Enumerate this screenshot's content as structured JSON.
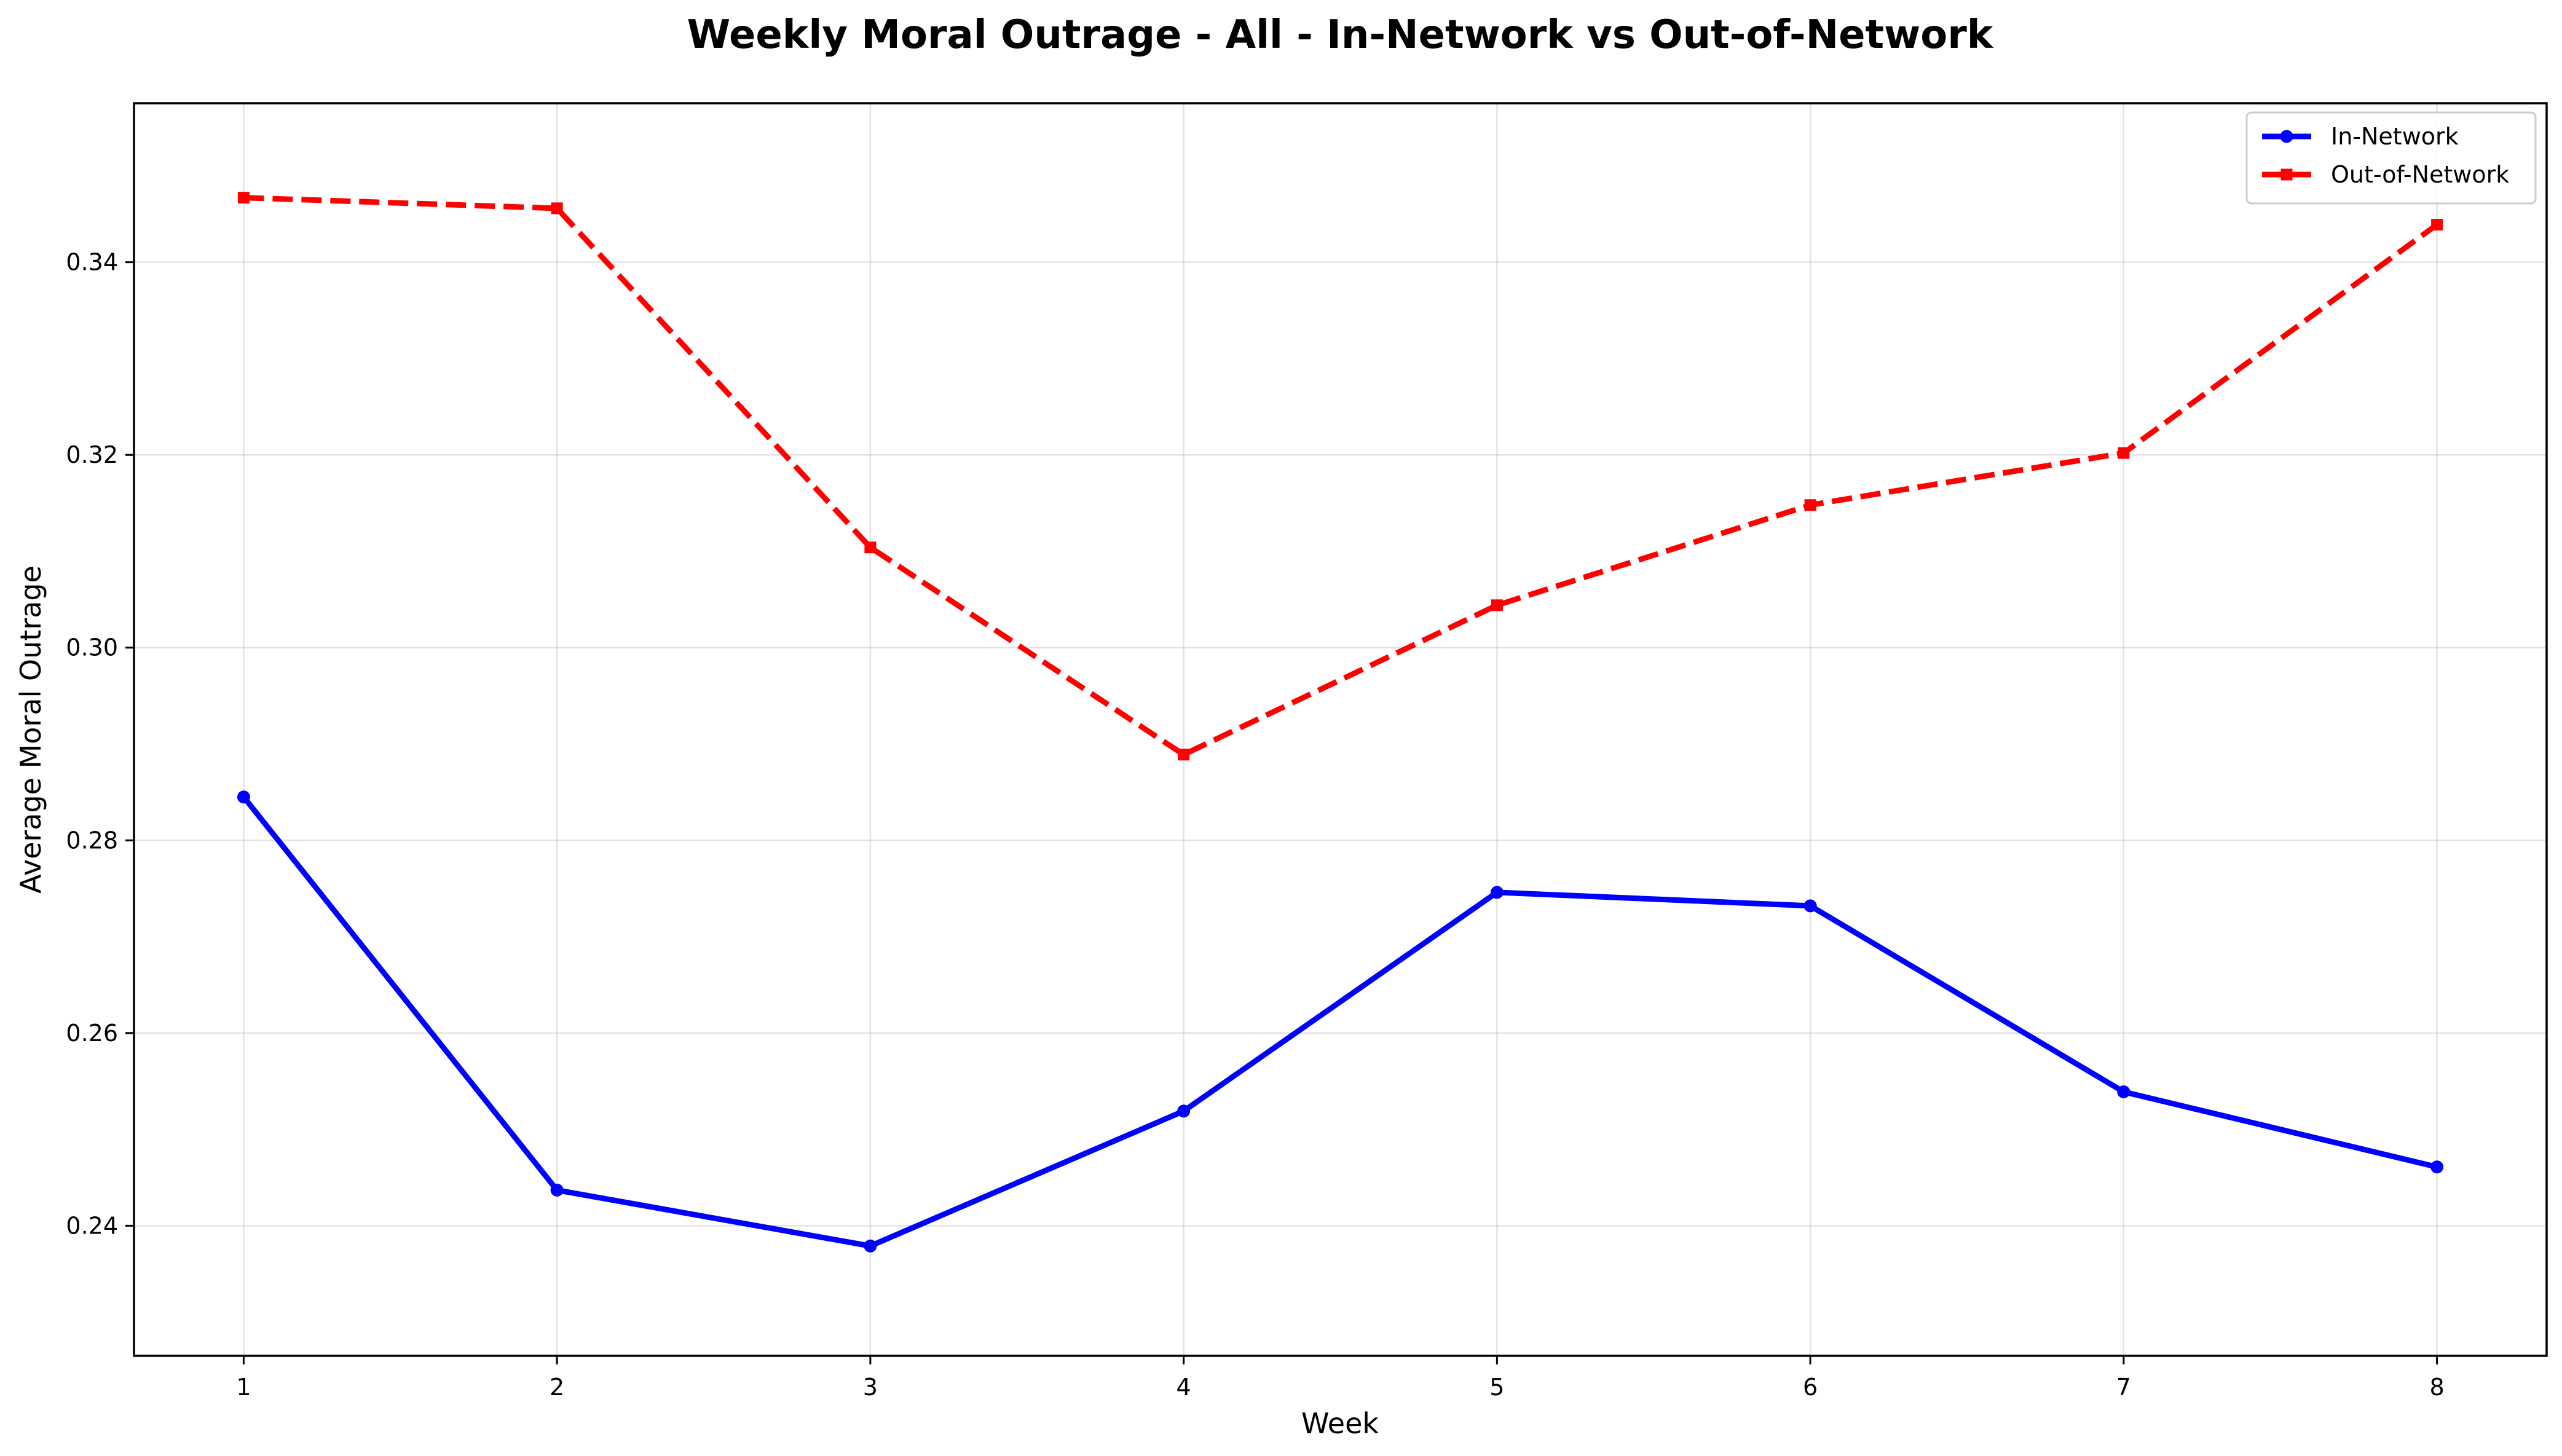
{
  "chart_data": {
    "type": "line",
    "title": "Weekly Moral Outrage - All - In-Network vs Out-of-Network",
    "xlabel": "Week",
    "ylabel": "Average Moral Outrage",
    "x": [
      1,
      2,
      3,
      4,
      5,
      6,
      7,
      8
    ],
    "x_tick_labels": [
      "1",
      "2",
      "3",
      "4",
      "5",
      "6",
      "7",
      "8"
    ],
    "xlim": [
      0.65,
      8.35
    ],
    "ylim": [
      0.2265,
      0.3565
    ],
    "y_ticks": [
      0.24,
      0.26,
      0.28,
      0.3,
      0.32,
      0.34
    ],
    "y_tick_labels": [
      "0.24",
      "0.26",
      "0.28",
      "0.30",
      "0.32",
      "0.34"
    ],
    "grid": true,
    "legend_position": "top-right",
    "series": [
      {
        "name": "In-Network",
        "color": "#0000ff",
        "line_style": "solid",
        "marker": "circle",
        "values": [
          0.2845,
          0.2437,
          0.2379,
          0.2519,
          0.2746,
          0.2732,
          0.2539,
          0.2461
        ]
      },
      {
        "name": "Out-of-Network",
        "color": "#ff0000",
        "line_style": "dashed",
        "marker": "square",
        "values": [
          0.3467,
          0.3456,
          0.3104,
          0.2889,
          0.3044,
          0.3148,
          0.3202,
          0.3439
        ]
      }
    ]
  }
}
